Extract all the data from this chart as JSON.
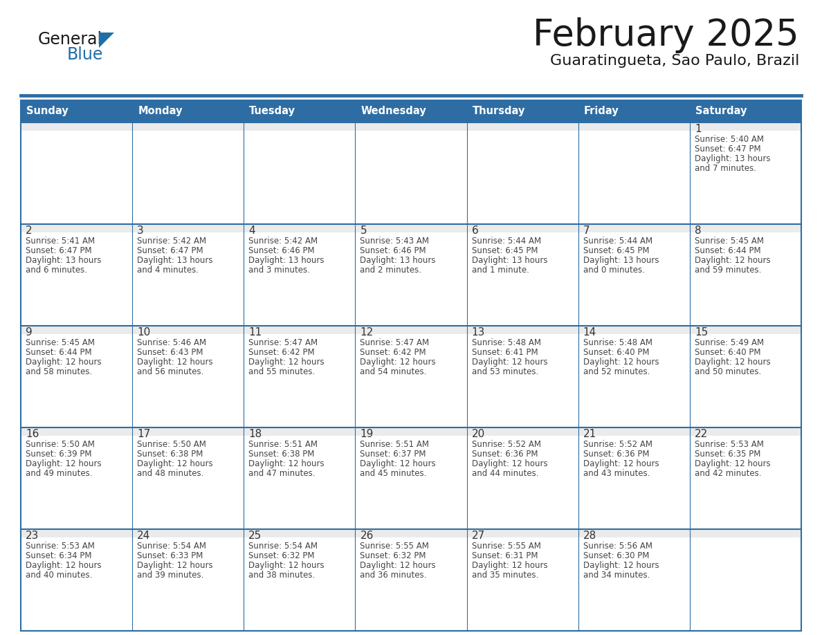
{
  "title": "February 2025",
  "subtitle": "Guaratingueta, Sao Paulo, Brazil",
  "days_of_week": [
    "Sunday",
    "Monday",
    "Tuesday",
    "Wednesday",
    "Thursday",
    "Friday",
    "Saturday"
  ],
  "header_bg": "#2E6DA4",
  "header_text": "#FFFFFF",
  "cell_bg_light": "#EBEBEB",
  "cell_bg_white": "#FFFFFF",
  "line_color": "#2E6DA4",
  "text_color_dark": "#444444",
  "text_color_num": "#333333",
  "calendar_data": [
    [
      null,
      null,
      null,
      null,
      null,
      null,
      {
        "day": "1",
        "sunrise": "5:40 AM",
        "sunset": "6:47 PM",
        "daylight_line1": "Daylight: 13 hours",
        "daylight_line2": "and 7 minutes."
      }
    ],
    [
      {
        "day": "2",
        "sunrise": "5:41 AM",
        "sunset": "6:47 PM",
        "daylight_line1": "Daylight: 13 hours",
        "daylight_line2": "and 6 minutes."
      },
      {
        "day": "3",
        "sunrise": "5:42 AM",
        "sunset": "6:47 PM",
        "daylight_line1": "Daylight: 13 hours",
        "daylight_line2": "and 4 minutes."
      },
      {
        "day": "4",
        "sunrise": "5:42 AM",
        "sunset": "6:46 PM",
        "daylight_line1": "Daylight: 13 hours",
        "daylight_line2": "and 3 minutes."
      },
      {
        "day": "5",
        "sunrise": "5:43 AM",
        "sunset": "6:46 PM",
        "daylight_line1": "Daylight: 13 hours",
        "daylight_line2": "and 2 minutes."
      },
      {
        "day": "6",
        "sunrise": "5:44 AM",
        "sunset": "6:45 PM",
        "daylight_line1": "Daylight: 13 hours",
        "daylight_line2": "and 1 minute."
      },
      {
        "day": "7",
        "sunrise": "5:44 AM",
        "sunset": "6:45 PM",
        "daylight_line1": "Daylight: 13 hours",
        "daylight_line2": "and 0 minutes."
      },
      {
        "day": "8",
        "sunrise": "5:45 AM",
        "sunset": "6:44 PM",
        "daylight_line1": "Daylight: 12 hours",
        "daylight_line2": "and 59 minutes."
      }
    ],
    [
      {
        "day": "9",
        "sunrise": "5:45 AM",
        "sunset": "6:44 PM",
        "daylight_line1": "Daylight: 12 hours",
        "daylight_line2": "and 58 minutes."
      },
      {
        "day": "10",
        "sunrise": "5:46 AM",
        "sunset": "6:43 PM",
        "daylight_line1": "Daylight: 12 hours",
        "daylight_line2": "and 56 minutes."
      },
      {
        "day": "11",
        "sunrise": "5:47 AM",
        "sunset": "6:42 PM",
        "daylight_line1": "Daylight: 12 hours",
        "daylight_line2": "and 55 minutes."
      },
      {
        "day": "12",
        "sunrise": "5:47 AM",
        "sunset": "6:42 PM",
        "daylight_line1": "Daylight: 12 hours",
        "daylight_line2": "and 54 minutes."
      },
      {
        "day": "13",
        "sunrise": "5:48 AM",
        "sunset": "6:41 PM",
        "daylight_line1": "Daylight: 12 hours",
        "daylight_line2": "and 53 minutes."
      },
      {
        "day": "14",
        "sunrise": "5:48 AM",
        "sunset": "6:40 PM",
        "daylight_line1": "Daylight: 12 hours",
        "daylight_line2": "and 52 minutes."
      },
      {
        "day": "15",
        "sunrise": "5:49 AM",
        "sunset": "6:40 PM",
        "daylight_line1": "Daylight: 12 hours",
        "daylight_line2": "and 50 minutes."
      }
    ],
    [
      {
        "day": "16",
        "sunrise": "5:50 AM",
        "sunset": "6:39 PM",
        "daylight_line1": "Daylight: 12 hours",
        "daylight_line2": "and 49 minutes."
      },
      {
        "day": "17",
        "sunrise": "5:50 AM",
        "sunset": "6:38 PM",
        "daylight_line1": "Daylight: 12 hours",
        "daylight_line2": "and 48 minutes."
      },
      {
        "day": "18",
        "sunrise": "5:51 AM",
        "sunset": "6:38 PM",
        "daylight_line1": "Daylight: 12 hours",
        "daylight_line2": "and 47 minutes."
      },
      {
        "day": "19",
        "sunrise": "5:51 AM",
        "sunset": "6:37 PM",
        "daylight_line1": "Daylight: 12 hours",
        "daylight_line2": "and 45 minutes."
      },
      {
        "day": "20",
        "sunrise": "5:52 AM",
        "sunset": "6:36 PM",
        "daylight_line1": "Daylight: 12 hours",
        "daylight_line2": "and 44 minutes."
      },
      {
        "day": "21",
        "sunrise": "5:52 AM",
        "sunset": "6:36 PM",
        "daylight_line1": "Daylight: 12 hours",
        "daylight_line2": "and 43 minutes."
      },
      {
        "day": "22",
        "sunrise": "5:53 AM",
        "sunset": "6:35 PM",
        "daylight_line1": "Daylight: 12 hours",
        "daylight_line2": "and 42 minutes."
      }
    ],
    [
      {
        "day": "23",
        "sunrise": "5:53 AM",
        "sunset": "6:34 PM",
        "daylight_line1": "Daylight: 12 hours",
        "daylight_line2": "and 40 minutes."
      },
      {
        "day": "24",
        "sunrise": "5:54 AM",
        "sunset": "6:33 PM",
        "daylight_line1": "Daylight: 12 hours",
        "daylight_line2": "and 39 minutes."
      },
      {
        "day": "25",
        "sunrise": "5:54 AM",
        "sunset": "6:32 PM",
        "daylight_line1": "Daylight: 12 hours",
        "daylight_line2": "and 38 minutes."
      },
      {
        "day": "26",
        "sunrise": "5:55 AM",
        "sunset": "6:32 PM",
        "daylight_line1": "Daylight: 12 hours",
        "daylight_line2": "and 36 minutes."
      },
      {
        "day": "27",
        "sunrise": "5:55 AM",
        "sunset": "6:31 PM",
        "daylight_line1": "Daylight: 12 hours",
        "daylight_line2": "and 35 minutes."
      },
      {
        "day": "28",
        "sunrise": "5:56 AM",
        "sunset": "6:30 PM",
        "daylight_line1": "Daylight: 12 hours",
        "daylight_line2": "and 34 minutes."
      },
      null
    ]
  ],
  "logo_color_general": "#1a1a1a",
  "logo_color_blue": "#1E6EA8",
  "logo_triangle_color": "#1E6EA8",
  "fig_width": 11.88,
  "fig_height": 9.18,
  "dpi": 100
}
